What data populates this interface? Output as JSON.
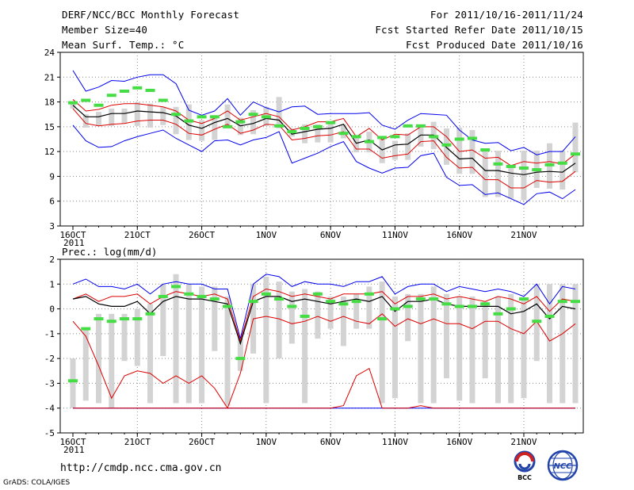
{
  "header": {
    "title": "DERF/NCC/BCC Monthly Forecast",
    "member_size": "Member Size=40",
    "variable": "Mean Surf. Temp.: °C",
    "period": "For 2011/10/16-2011/11/24",
    "refer_date": "Fcst Started Refer Date 2011/10/15",
    "produced_date": "Fcst Produced Date 2011/10/16"
  },
  "footer": {
    "url": "http://cmdp.ncc.cma.gov.cn",
    "credit": "GrADS: COLA/IGES",
    "logo_bcc": "BCC",
    "logo_ncc": "NCC"
  },
  "colors": {
    "max_line": "#0000ee",
    "percentile_line": "#dd0000",
    "mean_line": "#000000",
    "box": "#d3d3d3",
    "climate": "#44dd44",
    "grid": "#888888"
  },
  "chart_data": [
    {
      "type": "box",
      "title": "Mean Surf. Temp.: °C",
      "ylim": [
        3,
        24
      ],
      "yticks": [
        3,
        6,
        9,
        12,
        15,
        18,
        21,
        24
      ],
      "xtick_labels": [
        "16OCT",
        "21OCT",
        "26OCT",
        "1NOV",
        "6NOV",
        "11NOV",
        "16NOV",
        "21NOV"
      ],
      "year_label": "2011",
      "days": 40,
      "max": [
        21.8,
        19.3,
        19.8,
        20.6,
        20.5,
        21.0,
        21.3,
        21.3,
        20.2,
        17.0,
        16.4,
        16.9,
        18.4,
        16.4,
        18.0,
        17.3,
        16.8,
        17.4,
        17.5,
        16.5,
        16.6,
        16.6,
        16.6,
        16.7,
        15.2,
        14.7,
        15.8,
        16.6,
        16.5,
        16.4,
        14.6,
        13.4,
        13.0,
        13.1,
        12.1,
        12.5,
        11.6,
        12.0,
        12.0,
        13.8
      ],
      "p90": [
        18.3,
        16.9,
        17.1,
        17.6,
        17.8,
        17.8,
        17.6,
        17.4,
        16.9,
        15.8,
        15.4,
        16.0,
        16.9,
        15.8,
        16.2,
        16.6,
        16.2,
        14.6,
        15.0,
        15.6,
        15.6,
        16.0,
        13.8,
        14.8,
        13.4,
        14.1,
        14.0,
        15.0,
        15.0,
        13.8,
        12.0,
        12.2,
        11.2,
        11.3,
        10.3,
        10.8,
        10.6,
        10.8,
        10.5,
        11.7
      ],
      "mean": [
        17.6,
        16.2,
        16.2,
        16.6,
        16.6,
        16.9,
        16.8,
        16.7,
        16.3,
        15.2,
        14.8,
        15.5,
        16.0,
        15.1,
        15.4,
        16.0,
        15.8,
        14.1,
        14.4,
        14.7,
        14.8,
        15.3,
        13.0,
        13.4,
        12.2,
        12.8,
        12.9,
        14.0,
        14.0,
        12.5,
        11.1,
        11.2,
        9.7,
        9.7,
        9.4,
        9.2,
        9.5,
        9.6,
        9.5,
        10.6
      ],
      "p10": [
        17.2,
        15.4,
        15.1,
        15.3,
        15.4,
        15.7,
        15.8,
        15.8,
        15.3,
        14.2,
        14.0,
        14.7,
        15.3,
        14.2,
        14.6,
        15.3,
        15.2,
        13.4,
        13.6,
        13.9,
        14.0,
        14.4,
        12.3,
        12.3,
        11.2,
        11.5,
        11.7,
        13.2,
        13.3,
        11.3,
        10.0,
        10.1,
        8.6,
        8.6,
        7.6,
        7.6,
        8.5,
        8.3,
        8.4,
        9.6
      ],
      "min": [
        15.2,
        13.3,
        12.5,
        12.6,
        13.3,
        13.8,
        14.2,
        14.6,
        13.6,
        12.8,
        12.0,
        13.3,
        13.4,
        12.8,
        13.4,
        13.7,
        14.4,
        10.6,
        11.2,
        11.8,
        12.6,
        13.2,
        10.8,
        10.0,
        9.4,
        10.0,
        10.1,
        11.5,
        11.8,
        8.9,
        7.9,
        8.0,
        6.8,
        7.0,
        6.3,
        5.6,
        6.9,
        7.1,
        6.3,
        7.4
      ],
      "box_top": [
        18.0,
        16.5,
        16.8,
        17.2,
        17.2,
        18.0,
        17.8,
        17.4,
        17.4,
        17.7,
        15.8,
        16.4,
        17.7,
        16.1,
        17.0,
        17.4,
        18.6,
        14.8,
        15.3,
        15.3,
        15.6,
        15.3,
        13.7,
        14.4,
        13.5,
        13.3,
        14.2,
        15.0,
        15.6,
        14.8,
        14.9,
        14.6,
        12.1,
        12.1,
        10.4,
        12.1,
        12.1,
        13.0,
        12.1,
        15.5
      ],
      "box_bottom": [
        17.2,
        14.9,
        15.1,
        15.1,
        15.4,
        15.1,
        14.9,
        15.2,
        14.1,
        13.4,
        13.3,
        13.4,
        15.0,
        14.0,
        14.1,
        15.1,
        14.8,
        13.8,
        13.0,
        13.1,
        13.1,
        13.6,
        11.9,
        11.9,
        10.6,
        11.0,
        11.0,
        12.6,
        12.3,
        10.4,
        9.3,
        9.3,
        6.5,
        6.5,
        6.3,
        6.1,
        7.6,
        7.5,
        7.4,
        9.5
      ],
      "climate": [
        17.9,
        18.2,
        17.6,
        18.8,
        19.3,
        19.7,
        19.4,
        18.2,
        16.5,
        15.7,
        16.2,
        16.2,
        15.0,
        15.6,
        16.5,
        16.2,
        15.1,
        14.4,
        14.8,
        15.0,
        15.5,
        14.2,
        13.8,
        13.2,
        13.7,
        13.8,
        15.1,
        15.1,
        13.8,
        12.8,
        13.5,
        13.6,
        12.2,
        10.5,
        10.2,
        10.0,
        9.8,
        10.4,
        10.6,
        11.7
      ]
    },
    {
      "type": "box",
      "title": "Prec.: log(mm/d)",
      "ylim": [
        -5,
        2
      ],
      "yticks": [
        -5,
        -4,
        -3,
        -2,
        -1,
        0,
        1,
        2
      ],
      "xtick_labels": [
        "16OCT",
        "21OCT",
        "26OCT",
        "1NOV",
        "6NOV",
        "11NOV",
        "16NOV",
        "21NOV"
      ],
      "year_label": "2011",
      "days": 40,
      "max": [
        1.0,
        1.2,
        0.9,
        0.9,
        0.8,
        1.0,
        0.6,
        1.0,
        1.1,
        1.0,
        1.0,
        0.8,
        0.8,
        -1.2,
        1.0,
        1.4,
        1.3,
        0.9,
        1.1,
        1.0,
        1.0,
        0.9,
        1.1,
        1.1,
        1.3,
        0.6,
        0.9,
        1.0,
        1.0,
        0.7,
        0.9,
        0.8,
        0.7,
        0.8,
        0.7,
        0.5,
        1.0,
        0.2,
        0.9,
        0.8
      ],
      "p90": [
        0.4,
        0.6,
        0.3,
        0.5,
        0.5,
        0.6,
        0.2,
        0.5,
        0.7,
        0.6,
        0.5,
        0.6,
        0.4,
        -1.3,
        0.5,
        0.8,
        0.7,
        0.5,
        0.6,
        0.5,
        0.4,
        0.6,
        0.6,
        0.6,
        0.7,
        0.2,
        0.5,
        0.5,
        0.6,
        0.4,
        0.5,
        0.4,
        0.3,
        0.5,
        0.4,
        0.2,
        0.5,
        -0.1,
        0.4,
        0.3
      ],
      "mean": [
        0.4,
        0.5,
        0.2,
        0.1,
        0.1,
        0.3,
        -0.2,
        0.3,
        0.5,
        0.4,
        0.4,
        0.3,
        0.2,
        -1.4,
        0.3,
        0.5,
        0.5,
        0.3,
        0.4,
        0.3,
        0.2,
        0.3,
        0.4,
        0.3,
        0.5,
        -0.1,
        0.3,
        0.3,
        0.4,
        0.2,
        0.1,
        0.1,
        0.1,
        0.1,
        -0.2,
        -0.1,
        0.2,
        -0.4,
        0.1,
        0.0
      ],
      "p10": [
        -0.5,
        -1.1,
        -2.3,
        -3.6,
        -2.7,
        -2.5,
        -2.6,
        -3.0,
        -2.7,
        -3.0,
        -2.7,
        -3.2,
        -4.0,
        -2.6,
        -0.4,
        -0.3,
        -0.4,
        -0.6,
        -0.5,
        -0.3,
        -0.5,
        -0.3,
        -0.5,
        -0.6,
        -0.2,
        -0.7,
        -0.4,
        -0.6,
        -0.4,
        -0.6,
        -0.6,
        -0.8,
        -0.5,
        -0.5,
        -0.8,
        -1.0,
        -0.5,
        -1.3,
        -1.0,
        -0.6
      ],
      "min": [
        -4.0,
        -4.0,
        -4.0,
        -4.0,
        -4.0,
        -4.0,
        -4.0,
        -4.0,
        -4.0,
        -4.0,
        -4.0,
        -4.0,
        -4.0,
        -4.0,
        -4.0,
        -4.0,
        -4.0,
        -4.0,
        -4.0,
        -4.0,
        -4.0,
        -4.0,
        -4.0,
        -4.0,
        -4.0,
        -4.0,
        -4.0,
        -4.0,
        -4.0,
        -4.0,
        -4.0,
        -4.0,
        -4.0,
        -4.0,
        -4.0,
        -4.0,
        -4.0,
        -4.0,
        -4.0,
        -4.0
      ],
      "min_red": [
        -4.0,
        -4.0,
        -4.0,
        -4.0,
        -4.0,
        -4.0,
        -4.0,
        -4.0,
        -4.0,
        -4.0,
        -4.0,
        -4.0,
        -4.0,
        -4.0,
        -4.0,
        -4.0,
        -4.0,
        -4.0,
        -4.0,
        -4.0,
        -4.0,
        -3.9,
        -2.7,
        -2.4,
        -4.0,
        -4.0,
        -4.0,
        -3.9,
        -4.0,
        -4.0,
        -4.0,
        -4.0,
        -4.0,
        -4.0,
        -4.0,
        -4.0,
        -4.0,
        -4.0,
        -4.0,
        -4.0
      ],
      "box_top": [
        -2.0,
        -0.8,
        -0.2,
        -0.2,
        -0.2,
        0.0,
        0.2,
        1.0,
        1.4,
        1.0,
        0.9,
        0.9,
        0.5,
        -1.2,
        1.0,
        1.3,
        1.1,
        0.7,
        0.8,
        0.7,
        0.5,
        0.5,
        0.6,
        0.9,
        1.1,
        0.5,
        0.6,
        0.6,
        0.9,
        0.6,
        0.5,
        0.5,
        0.3,
        0.5,
        0.6,
        0.4,
        1.0,
        1.0,
        1.0,
        1.0
      ],
      "box_bottom": [
        -4.0,
        -3.7,
        -3.8,
        -4.0,
        -2.1,
        -2.3,
        -3.8,
        -1.9,
        -3.8,
        -3.8,
        -3.8,
        -1.7,
        -3.9,
        -2.5,
        -1.8,
        -3.8,
        -2.0,
        -1.4,
        -3.8,
        -1.2,
        -0.8,
        -1.5,
        -0.8,
        -0.8,
        -3.8,
        -3.6,
        -1.3,
        -3.8,
        -3.8,
        -2.8,
        -3.7,
        -3.8,
        -2.8,
        -3.8,
        -3.8,
        -3.6,
        -2.1,
        -3.8,
        -3.8,
        -3.8
      ],
      "climate": [
        -2.9,
        -0.8,
        -0.4,
        -0.5,
        -0.4,
        -0.4,
        -0.2,
        0.5,
        0.9,
        0.6,
        0.5,
        0.4,
        0.1,
        -2.0,
        0.3,
        0.6,
        0.4,
        0.1,
        -0.3,
        0.6,
        0.3,
        0.2,
        0.3,
        0.6,
        -0.4,
        -0.0,
        0.1,
        0.4,
        0.4,
        0.2,
        0.1,
        0.1,
        0.2,
        -0.2,
        0.0,
        0.4,
        -0.5,
        -0.3,
        0.3,
        0.3
      ]
    }
  ]
}
